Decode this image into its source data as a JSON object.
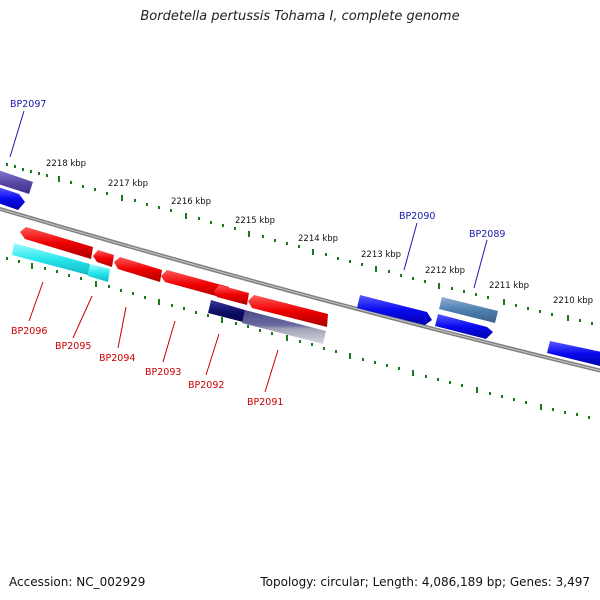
{
  "title": "Bordetella pertussis Tohama I, complete genome",
  "footer": {
    "accession": "Accession: NC_002929",
    "summary": "Topology: circular; Length: 4,086,189 bp; Genes: 3,497"
  },
  "colors": {
    "backbone": "#808080",
    "tick": "#1a7a1a",
    "forward_label": "#1a1aaa",
    "reverse_label": "#cc0000"
  },
  "scale_labels": [
    "2218 kbp",
    "2217 kbp",
    "2216 kbp",
    "2215 kbp",
    "2214 kbp",
    "2213 kbp",
    "2212 kbp",
    "2211 kbp",
    "2210 kbp"
  ],
  "gene_labels_forward": [
    "BP2097",
    "BP2090",
    "BP2089"
  ],
  "gene_labels_reverse": [
    "BP2096",
    "BP2095",
    "BP2094",
    "BP2093",
    "BP2092",
    "BP2091"
  ]
}
